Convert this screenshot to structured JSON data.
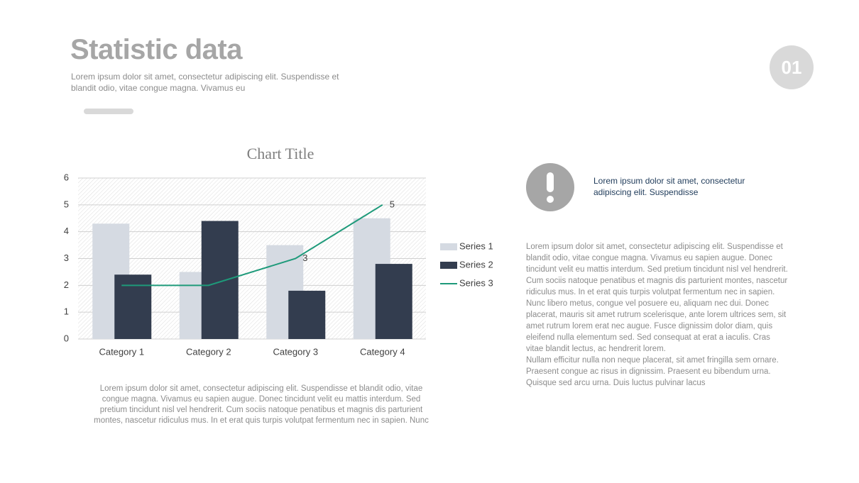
{
  "header": {
    "title": "Statistic data",
    "subtitle": "Lorem ipsum dolor sit amet, consectetur adipiscing elit. Suspendisse et blandit odio, vitae congue magna. Vivamus eu",
    "badge": "01"
  },
  "chart_data": {
    "type": "bar",
    "title": "Chart Title",
    "categories": [
      "Category 1",
      "Category 2",
      "Category 3",
      "Category 4"
    ],
    "series": [
      {
        "name": "Series 1",
        "color": "#d5dae2",
        "values": [
          4.3,
          2.5,
          3.5,
          4.5
        ]
      },
      {
        "name": "Series 2",
        "color": "#333d4f",
        "values": [
          2.4,
          4.4,
          1.8,
          2.8
        ]
      },
      {
        "name": "Series 3",
        "color": "#1e9a7a",
        "type": "line",
        "values": [
          2,
          2,
          3,
          5
        ],
        "value_labels": [
          null,
          null,
          "3",
          "5"
        ]
      }
    ],
    "ylim": [
      0,
      6
    ],
    "yticks": [
      0,
      1,
      2,
      3,
      4,
      5,
      6
    ],
    "grid": true,
    "legend": "right"
  },
  "chart_caption": "Lorem ipsum dolor sit amet, consectetur adipiscing elit. Suspendisse et blandit odio, vitae congue magna. Vivamus eu sapien augue. Donec tincidunt velit eu mattis interdum. Sed pretium tincidunt nisl vel hendrerit. Cum sociis natoque penatibus et magnis dis parturient montes, nascetur ridiculus mus. In et erat quis turpis volutpat fermentum nec in sapien. Nunc",
  "note": "Lorem ipsum dolor sit amet, consectetur adipiscing elit. Suspendisse",
  "body": [
    "Lorem ipsum dolor sit amet, consectetur adipiscing elit. Suspendisse et blandit odio, vitae congue magna. Vivamus eu sapien augue. Donec tincidunt velit eu mattis interdum. Sed pretium tincidunt nisl vel hendrerit. Cum sociis natoque penatibus et magnis dis parturient montes, nascetur ridiculus mus. In et erat quis turpis volutpat fermentum nec in sapien. Nunc libero metus, congue vel posuere eu, aliquam nec dui. Donec placerat, mauris sit amet rutrum scelerisque, ante lorem ultrices sem, sit amet rutrum lorem erat nec augue. Fusce dignissim dolor diam, quis eleifend nulla elementum sed. Sed consequat at erat a iaculis. Cras vitae blandit lectus, ac hendrerit lorem.",
    "Nullam efficitur nulla non neque placerat, sit amet fringilla sem ornare. Praesent congue ac risus in dignissim. Praesent eu bibendum urna. Quisque sed arcu urna. Duis luctus pulvinar lacus"
  ]
}
